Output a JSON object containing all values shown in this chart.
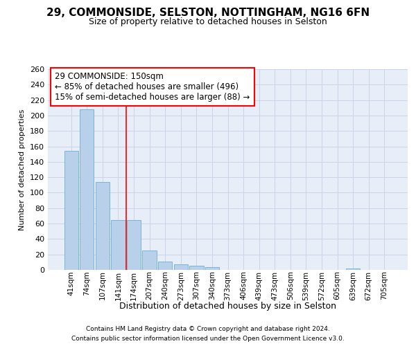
{
  "title": "29, COMMONSIDE, SELSTON, NOTTINGHAM, NG16 6FN",
  "subtitle": "Size of property relative to detached houses in Selston",
  "xlabel": "Distribution of detached houses by size in Selston",
  "ylabel": "Number of detached properties",
  "footnote1": "Contains HM Land Registry data © Crown copyright and database right 2024.",
  "footnote2": "Contains public sector information licensed under the Open Government Licence v3.0.",
  "annotation_line1": "29 COMMONSIDE: 150sqm",
  "annotation_line2": "← 85% of detached houses are smaller (496)",
  "annotation_line3": "15% of semi-detached houses are larger (88) →",
  "bar_labels": [
    "41sqm",
    "74sqm",
    "107sqm",
    "141sqm",
    "174sqm",
    "207sqm",
    "240sqm",
    "273sqm",
    "307sqm",
    "340sqm",
    "373sqm",
    "406sqm",
    "439sqm",
    "473sqm",
    "506sqm",
    "539sqm",
    "572sqm",
    "605sqm",
    "639sqm",
    "672sqm",
    "705sqm"
  ],
  "bar_values": [
    154,
    208,
    114,
    65,
    65,
    25,
    11,
    7,
    5,
    4,
    0,
    0,
    0,
    0,
    0,
    0,
    0,
    0,
    2,
    0,
    0
  ],
  "bar_color": "#b8d0ea",
  "bar_edge_color": "#6baed6",
  "grid_color": "#c8d4e8",
  "bg_color": "#e8eef8",
  "red_line_x": 3.5,
  "ylim_max": 260,
  "ytick_step": 20,
  "title_fontsize": 11,
  "subtitle_fontsize": 9,
  "ylabel_fontsize": 8,
  "xlabel_fontsize": 9,
  "tick_labelsize": 8,
  "xtick_labelsize": 7.5,
  "footnote_fontsize": 6.5,
  "ann_fontsize": 8.5
}
